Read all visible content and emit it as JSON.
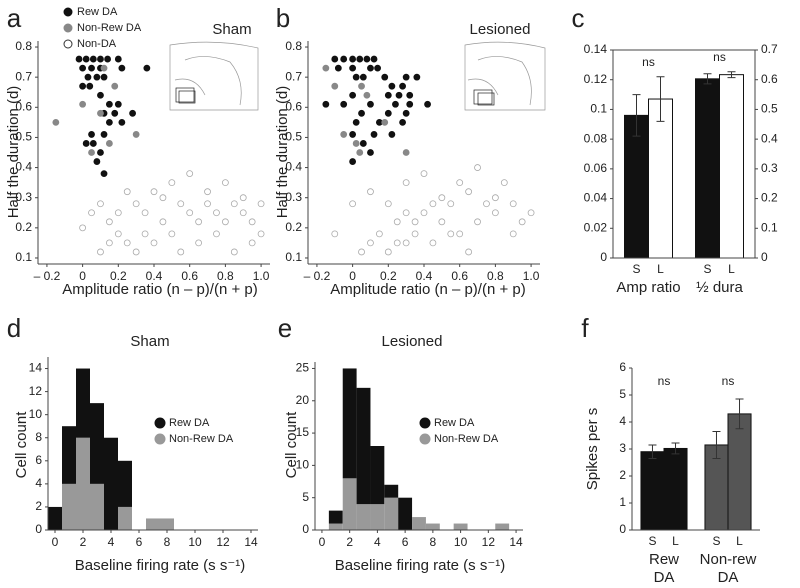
{
  "chart_data": [
    {
      "type": "scatter",
      "panel": "a",
      "title": "Sham",
      "xlabel": "Amplitude ratio (n – p)/(n + p)",
      "ylabel": "Half the duration (d)",
      "xlim": [
        -0.25,
        1.05
      ],
      "xticks": [
        {
          "value": -0.2,
          "label": "– 0.2"
        },
        0,
        0.2,
        0.4,
        0.6,
        0.8,
        {
          "value": 1,
          "label": "1.0"
        }
      ],
      "ylim": [
        0.08,
        0.82
      ],
      "yticks": [
        0.1,
        0.2,
        0.3,
        0.4,
        0.5,
        0.6,
        0.7,
        0.8
      ],
      "legend": "top-left",
      "series": [
        {
          "name": "Rew DA",
          "color": "#111111",
          "filled": true,
          "x": [
            -0.02,
            0.02,
            0.06,
            0.1,
            0.14,
            0.2,
            0,
            0.05,
            0.1,
            0.22,
            0.36,
            0.03,
            0.08,
            0.12,
            0,
            0.04,
            0.1,
            0.15,
            0.2,
            0.12,
            0.18,
            0.28,
            0.15,
            0.22,
            0.05,
            0.12,
            0.02,
            0.06,
            0.1,
            0.08,
            0.12
          ],
          "values": [
            0.76,
            0.76,
            0.76,
            0.76,
            0.76,
            0.76,
            0.73,
            0.73,
            0.73,
            0.73,
            0.73,
            0.7,
            0.7,
            0.7,
            0.67,
            0.67,
            0.64,
            0.61,
            0.61,
            0.58,
            0.58,
            0.58,
            0.55,
            0.55,
            0.51,
            0.51,
            0.48,
            0.48,
            0.45,
            0.42,
            0.38
          ]
        },
        {
          "name": "Non-Rew DA",
          "color": "#888888",
          "filled": true,
          "x": [
            -0.15,
            0,
            0.18,
            0.12,
            0.1,
            0.3,
            0.05,
            0.15
          ],
          "values": [
            0.55,
            0.61,
            0.67,
            0.73,
            0.58,
            0.51,
            0.45,
            0.48
          ]
        },
        {
          "name": "Non-DA",
          "color": "#aaaaaa",
          "filled": false,
          "x": [
            0.1,
            0.15,
            0.2,
            0.25,
            0.3,
            0.35,
            0.4,
            0.45,
            0.5,
            0.55,
            0.6,
            0.65,
            0.7,
            0.75,
            0.8,
            0.85,
            0.9,
            0.95,
            1,
            0.05,
            0.1,
            0.15,
            0.2,
            0.3,
            0.4,
            0.5,
            0.6,
            0.7,
            0.8,
            0.9,
            1,
            0.95,
            0.25,
            0.35,
            0.45,
            0.55,
            0.65,
            0.75,
            0.85,
            0
          ],
          "values": [
            0.12,
            0.15,
            0.18,
            0.15,
            0.12,
            0.18,
            0.15,
            0.22,
            0.18,
            0.12,
            0.25,
            0.22,
            0.28,
            0.25,
            0.22,
            0.28,
            0.25,
            0.22,
            0.28,
            0.25,
            0.28,
            0.22,
            0.25,
            0.28,
            0.32,
            0.35,
            0.38,
            0.32,
            0.35,
            0.3,
            0.18,
            0.15,
            0.32,
            0.25,
            0.3,
            0.28,
            0.15,
            0.18,
            0.12,
            0.2
          ]
        }
      ]
    },
    {
      "type": "scatter",
      "panel": "b",
      "title": "Lesioned",
      "xlabel": "Amplitude ratio (n – p)/(n + p)",
      "ylabel": "Half the duration (d)",
      "xlim": [
        -0.25,
        1.05
      ],
      "xticks": [
        {
          "value": -0.2,
          "label": "– 0.2"
        },
        0,
        0.2,
        0.4,
        0.6,
        0.8,
        {
          "value": 1,
          "label": "1.0"
        }
      ],
      "ylim": [
        0.08,
        0.82
      ],
      "yticks": [
        0.1,
        0.2,
        0.3,
        0.4,
        0.5,
        0.6,
        0.7,
        0.8
      ],
      "series": [
        {
          "color": "#111111",
          "filled": true,
          "x": [
            -0.15,
            -0.1,
            -0.05,
            0,
            0.04,
            0.08,
            0.12,
            -0.08,
            0,
            0.1,
            0.14,
            0.02,
            0.06,
            0.18,
            0.3,
            0.36,
            0.22,
            0.28,
            0,
            0.2,
            0.26,
            0.32,
            -0.05,
            0.1,
            0.24,
            0.32,
            0.42,
            0.05,
            0.2,
            0.3,
            0.02,
            0.15,
            0.28,
            0,
            0.12,
            0.22,
            0.06,
            0.1,
            0
          ],
          "values": [
            0.61,
            0.76,
            0.76,
            0.76,
            0.76,
            0.76,
            0.76,
            0.73,
            0.73,
            0.73,
            0.73,
            0.7,
            0.7,
            0.7,
            0.7,
            0.7,
            0.67,
            0.67,
            0.64,
            0.64,
            0.64,
            0.64,
            0.61,
            0.61,
            0.61,
            0.61,
            0.61,
            0.58,
            0.58,
            0.58,
            0.55,
            0.55,
            0.55,
            0.51,
            0.51,
            0.51,
            0.48,
            0.45,
            0.42
          ]
        },
        {
          "color": "#888888",
          "filled": true,
          "x": [
            -0.1,
            -0.15,
            0.05,
            0.08,
            0.02,
            -0.05,
            0.18,
            0.3,
            0.04
          ],
          "values": [
            0.67,
            0.73,
            0.67,
            0.64,
            0.48,
            0.51,
            0.55,
            0.45,
            0.45
          ]
        },
        {
          "color": "#aaaaaa",
          "filled": false,
          "x": [
            0.05,
            0.1,
            0.15,
            0.2,
            0.25,
            0.3,
            0.35,
            0.4,
            0.45,
            0.5,
            0.55,
            0.6,
            0.65,
            0.7,
            0.75,
            0.8,
            0.85,
            0.9,
            0.95,
            0,
            0.1,
            0.2,
            0.3,
            0.4,
            0.5,
            0.6,
            0.7,
            0.8,
            0.9,
            1,
            0.3,
            0.35,
            0.25,
            0.45,
            -0.1,
            0.55,
            0.65
          ],
          "values": [
            0.12,
            0.15,
            0.18,
            0.12,
            0.22,
            0.15,
            0.18,
            0.25,
            0.15,
            0.22,
            0.28,
            0.18,
            0.32,
            0.22,
            0.28,
            0.25,
            0.35,
            0.28,
            0.22,
            0.28,
            0.32,
            0.28,
            0.35,
            0.38,
            0.3,
            0.35,
            0.4,
            0.3,
            0.18,
            0.25,
            0.25,
            0.22,
            0.15,
            0.28,
            0.18,
            0.18,
            0.12
          ]
        }
      ]
    },
    {
      "type": "bar",
      "panel": "c",
      "ylim": [
        0,
        0.14
      ],
      "yticks": [
        0,
        0.02,
        0.04,
        0.06,
        0.08,
        0.1,
        0.12,
        0.14
      ],
      "y2lim": [
        0,
        0.7
      ],
      "y2ticks": [
        0,
        0.1,
        0.2,
        0.3,
        0.4,
        0.5,
        0.6,
        0.7
      ],
      "groups": [
        {
          "label": "Amp ratio",
          "annotation": "ns",
          "axis": "y",
          "categories": [
            "S",
            "L"
          ],
          "values": [
            0.096,
            0.107
          ],
          "errors": [
            0.014,
            0.015
          ],
          "colors": [
            "#111111",
            "#ffffff"
          ]
        },
        {
          "label": "½ dura",
          "annotation": "ns",
          "axis": "y2",
          "categories": [
            "S",
            "L"
          ],
          "values": [
            0.603,
            0.617
          ],
          "errors": [
            0.017,
            0.01
          ],
          "colors": [
            "#111111",
            "#ffffff"
          ]
        }
      ]
    },
    {
      "type": "histogram",
      "panel": "d",
      "title": "Sham",
      "xlabel": "Baseline firing rate (s s⁻¹)",
      "ylabel": "Cell count",
      "xlim": [
        -0.5,
        14.5
      ],
      "xticks": [
        0,
        2,
        4,
        6,
        8,
        10,
        12,
        14
      ],
      "ylim": [
        0,
        15
      ],
      "yticks": [
        0,
        2,
        4,
        6,
        8,
        10,
        12,
        14
      ],
      "legend": "right",
      "bins": [
        -0.5,
        0.5,
        1.5,
        2.5,
        3.5,
        4.5,
        5.5,
        6.5,
        7.5,
        8.5,
        9.5
      ],
      "series": [
        {
          "name": "Rew DA",
          "color": "#111111",
          "values": [
            2,
            5,
            6,
            7,
            8,
            4,
            0,
            0,
            0,
            0
          ]
        },
        {
          "name": "Non-Rew DA",
          "color": "#999999",
          "values": [
            0,
            4,
            8,
            4,
            0,
            2,
            0,
            1,
            1,
            0
          ]
        }
      ]
    },
    {
      "type": "histogram",
      "panel": "e",
      "title": "Lesioned",
      "xlabel": "Baseline firing rate (s s⁻¹)",
      "ylabel": "Cell count",
      "xlim": [
        -0.5,
        14.5
      ],
      "xticks": [
        0,
        2,
        4,
        6,
        8,
        10,
        12,
        14
      ],
      "ylim": [
        0,
        26
      ],
      "yticks": [
        0,
        5,
        10,
        15,
        20,
        25
      ],
      "legend": "right",
      "bins": [
        -0.5,
        0.5,
        1.5,
        2.5,
        3.5,
        4.5,
        5.5,
        6.5,
        7.5,
        8.5,
        9.5,
        10.5,
        11.5,
        12.5,
        13.5
      ],
      "series": [
        {
          "name": "Rew DA",
          "color": "#111111",
          "values": [
            0,
            2,
            17,
            18,
            9,
            2,
            5,
            0,
            0,
            0,
            0,
            0,
            0,
            0
          ]
        },
        {
          "name": "Non-Rew DA",
          "color": "#999999",
          "values": [
            0,
            1,
            8,
            4,
            4,
            5,
            0,
            2,
            1,
            0,
            1,
            0,
            0,
            1
          ]
        }
      ]
    },
    {
      "type": "bar",
      "panel": "f",
      "ylabel": "Spikes per s",
      "ylim": [
        0,
        6
      ],
      "yticks": [
        0,
        1,
        2,
        3,
        4,
        5,
        6
      ],
      "groups": [
        {
          "label": [
            "Rew",
            "DA"
          ],
          "annotation": "ns",
          "axis": "y",
          "categories": [
            "S",
            "L"
          ],
          "values": [
            2.9,
            3.02
          ],
          "errors": [
            0.25,
            0.2
          ],
          "colors": [
            "#111111",
            "#111111"
          ]
        },
        {
          "label": [
            "Non-rew",
            "DA"
          ],
          "annotation": "ns",
          "axis": "y",
          "categories": [
            "S",
            "L"
          ],
          "values": [
            3.15,
            4.3
          ],
          "errors": [
            0.5,
            0.55
          ],
          "colors": [
            "#555555",
            "#555555"
          ]
        }
      ]
    }
  ]
}
